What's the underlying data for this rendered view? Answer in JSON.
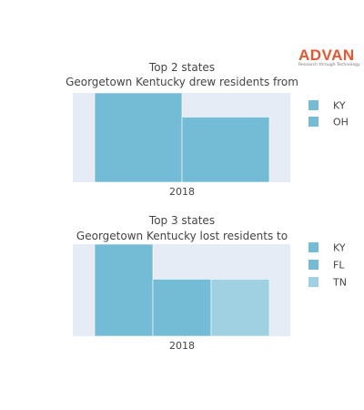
{
  "brand": {
    "name": "ADVAN",
    "tagline": "Research through Technology",
    "color": "#e8552f"
  },
  "chart_data": [
    {
      "type": "bar",
      "title_lines": [
        "Top 2 states",
        "Georgetown Kentucky drew residents from"
      ],
      "categories": [
        "2018"
      ],
      "series": [
        {
          "name": "KY",
          "values": [
            100
          ],
          "color": "#74bcd6"
        },
        {
          "name": "OH",
          "values": [
            73
          ],
          "color": "#74bcd6"
        }
      ],
      "ylim": [
        0,
        100
      ],
      "grid": false,
      "legend_position": "right",
      "plot_background": "#e5ecf6"
    },
    {
      "type": "bar",
      "title_lines": [
        "Top 3 states",
        "Georgetown Kentucky lost residents to"
      ],
      "categories": [
        "2018"
      ],
      "series": [
        {
          "name": "KY",
          "values": [
            100
          ],
          "color": "#74bcd6"
        },
        {
          "name": "FL",
          "values": [
            62
          ],
          "color": "#74bcd6"
        },
        {
          "name": "TN",
          "values": [
            62
          ],
          "color": "#9fd1e3"
        }
      ],
      "ylim": [
        0,
        100
      ],
      "grid": false,
      "legend_position": "right",
      "plot_background": "#e5ecf6"
    }
  ]
}
